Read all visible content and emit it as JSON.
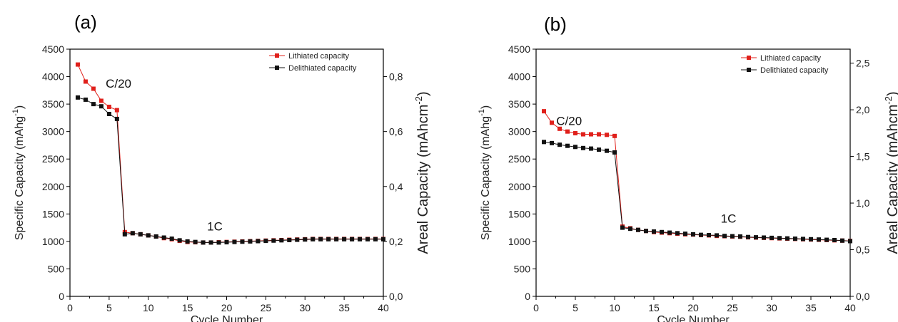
{
  "chart_data": [
    {
      "type": "line",
      "panel_label": "(a)",
      "xlabel": "Cycle Number",
      "ylabel_main": "Specific Capacity (mAhg",
      "ylabel_sup": "-1",
      "ylabel_end": ")",
      "y2label_main": "Areal Capacity (mAhcm",
      "y2label_sup": "-2",
      "y2label_end": ")",
      "xlim": [
        0,
        40
      ],
      "ylim": [
        0,
        4500
      ],
      "y2lim": [
        0.0,
        0.9
      ],
      "xticks": [
        "0",
        "5",
        "10",
        "15",
        "20",
        "25",
        "30",
        "35",
        "40"
      ],
      "yticks": [
        "0",
        "500",
        "1000",
        "1500",
        "2000",
        "2500",
        "3000",
        "3500",
        "4000",
        "4500"
      ],
      "y2ticks": [
        "0,0",
        "0,2",
        "0,4",
        "0,6",
        "0,8"
      ],
      "y2tick_values": [
        0.0,
        0.2,
        0.4,
        0.6,
        0.8
      ],
      "legend_position": "top-right",
      "annotations": [
        {
          "text": "C/20",
          "x": 6.2,
          "y": 3800
        },
        {
          "text": "1C",
          "x": 18.5,
          "y": 1200
        }
      ],
      "series": [
        {
          "name": "Lithiated capacity",
          "color": "#e0201b",
          "x": [
            1,
            2,
            3,
            4,
            5,
            6,
            7,
            8,
            9,
            10,
            11,
            12,
            13,
            14,
            15,
            16,
            17,
            18,
            19,
            20,
            21,
            22,
            23,
            24,
            25,
            26,
            27,
            28,
            29,
            30,
            31,
            32,
            33,
            34,
            35,
            36,
            37,
            38,
            39,
            40
          ],
          "values": [
            4220,
            3910,
            3780,
            3560,
            3450,
            3390,
            1170,
            1150,
            1130,
            1110,
            1090,
            1060,
            1040,
            1010,
            990,
            985,
            980,
            980,
            985,
            990,
            995,
            1000,
            1005,
            1010,
            1015,
            1020,
            1025,
            1030,
            1035,
            1040,
            1045,
            1045,
            1045,
            1045,
            1045,
            1045,
            1045,
            1045,
            1045,
            1045
          ]
        },
        {
          "name": "Delithiated capacity",
          "color": "#111111",
          "x": [
            1,
            2,
            3,
            4,
            5,
            6,
            7,
            8,
            9,
            10,
            11,
            12,
            13,
            14,
            15,
            16,
            17,
            18,
            19,
            20,
            21,
            22,
            23,
            24,
            25,
            26,
            27,
            28,
            29,
            30,
            31,
            32,
            33,
            34,
            35,
            36,
            37,
            38,
            39,
            40
          ],
          "values": [
            3620,
            3580,
            3500,
            3460,
            3320,
            3230,
            1130,
            1150,
            1130,
            1110,
            1090,
            1070,
            1050,
            1020,
            1000,
            990,
            980,
            980,
            980,
            985,
            990,
            995,
            1000,
            1005,
            1010,
            1015,
            1020,
            1025,
            1030,
            1035,
            1040,
            1040,
            1040,
            1040,
            1040,
            1040,
            1040,
            1040,
            1040,
            1040
          ]
        }
      ]
    },
    {
      "type": "line",
      "panel_label": "(b)",
      "xlabel": "Cycle Number",
      "ylabel_main": "Specific Capacity (mAhg",
      "ylabel_sup": "-1",
      "ylabel_end": ")",
      "y2label_main": "Areal Capacity (mAhcm",
      "y2label_sup": "-2",
      "y2label_end": ")",
      "xlim": [
        0,
        40
      ],
      "ylim": [
        0,
        4500
      ],
      "y2lim": [
        0.0,
        2.65
      ],
      "xticks": [
        "0",
        "5",
        "10",
        "15",
        "20",
        "25",
        "30",
        "35",
        "40"
      ],
      "yticks": [
        "0",
        "500",
        "1000",
        "1500",
        "2000",
        "2500",
        "3000",
        "3500",
        "4000",
        "4500"
      ],
      "y2ticks": [
        "0,0",
        "0,5",
        "1,0",
        "1,5",
        "2,0",
        "2,5"
      ],
      "y2tick_values": [
        0.0,
        0.5,
        1.0,
        1.5,
        2.0,
        2.5
      ],
      "legend_position": "top-right",
      "annotations": [
        {
          "text": "C/20",
          "x": 4.2,
          "y": 3120
        },
        {
          "text": "1C",
          "x": 24.5,
          "y": 1340
        }
      ],
      "series": [
        {
          "name": "Lithiated capacity",
          "color": "#e0201b",
          "x": [
            1,
            2,
            3,
            4,
            5,
            6,
            7,
            8,
            9,
            10,
            11,
            12,
            13,
            14,
            15,
            16,
            17,
            18,
            19,
            20,
            21,
            22,
            23,
            24,
            25,
            26,
            27,
            28,
            29,
            30,
            31,
            32,
            33,
            34,
            35,
            36,
            37,
            38,
            39,
            40
          ],
          "values": [
            3370,
            3160,
            3050,
            3000,
            2970,
            2950,
            2950,
            2950,
            2940,
            2920,
            1270,
            1240,
            1210,
            1190,
            1170,
            1160,
            1150,
            1140,
            1130,
            1125,
            1115,
            1110,
            1100,
            1095,
            1090,
            1085,
            1075,
            1070,
            1065,
            1060,
            1055,
            1050,
            1045,
            1040,
            1035,
            1030,
            1025,
            1020,
            1015,
            1010
          ]
        },
        {
          "name": "Delithiated capacity",
          "color": "#111111",
          "x": [
            1,
            2,
            3,
            4,
            5,
            6,
            7,
            8,
            9,
            10,
            11,
            12,
            13,
            14,
            15,
            16,
            17,
            18,
            19,
            20,
            21,
            22,
            23,
            24,
            25,
            26,
            27,
            28,
            29,
            30,
            31,
            32,
            33,
            34,
            35,
            36,
            37,
            38,
            39,
            40
          ],
          "values": [
            2810,
            2790,
            2760,
            2740,
            2720,
            2700,
            2690,
            2670,
            2650,
            2620,
            1250,
            1230,
            1210,
            1190,
            1180,
            1170,
            1160,
            1150,
            1140,
            1130,
            1120,
            1115,
            1110,
            1100,
            1095,
            1090,
            1080,
            1075,
            1070,
            1065,
            1060,
            1055,
            1050,
            1045,
            1040,
            1035,
            1030,
            1025,
            1015,
            1005
          ]
        }
      ]
    }
  ]
}
